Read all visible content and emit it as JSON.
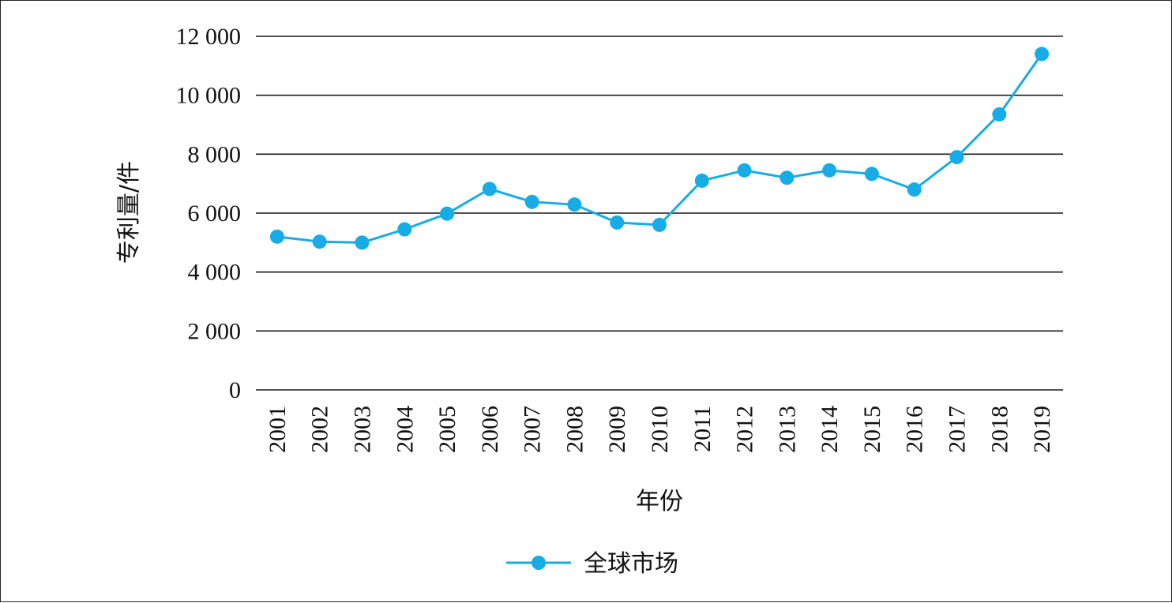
{
  "chart_data": {
    "type": "line",
    "xlabel": "年份",
    "ylabel": "专利量/件",
    "ylim": [
      0,
      12000
    ],
    "yticks": [
      0,
      2000,
      4000,
      6000,
      8000,
      10000,
      12000
    ],
    "ytick_labels": [
      "0",
      "2 000",
      "4 000",
      "6 000",
      "8 000",
      "10 000",
      "12 000"
    ],
    "categories": [
      "2001",
      "2002",
      "2003",
      "2004",
      "2005",
      "2006",
      "2007",
      "2008",
      "2009",
      "2010",
      "2011",
      "2012",
      "2013",
      "2014",
      "2015",
      "2016",
      "2017",
      "2018",
      "2019"
    ],
    "series": [
      {
        "name": "全球市场",
        "color": "#17ace6",
        "values": [
          5200,
          5030,
          5000,
          5450,
          5980,
          6820,
          6380,
          6290,
          5680,
          5600,
          7100,
          7450,
          7200,
          7450,
          7330,
          6800,
          7900,
          9350,
          11400
        ]
      }
    ],
    "grid": "horizontal",
    "legend_position": "bottom-center"
  }
}
